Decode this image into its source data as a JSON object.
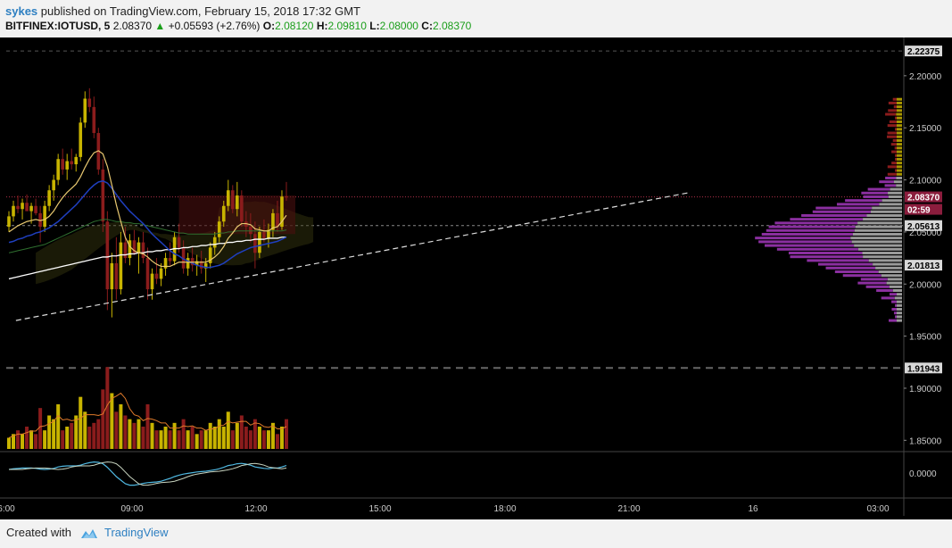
{
  "header": {
    "author": "sykes",
    "published_text": "published on TradingView.com, February 15, 2018 17:32 GMT",
    "symbol": "BITFINEX:IOTUSD, 5",
    "last": "2.08370",
    "change": "+0.05593 (+2.76%)",
    "o_label": "O:",
    "o_value": "2.08120",
    "h_label": "H:",
    "h_value": "2.09810",
    "l_label": "L:",
    "l_value": "2.08000",
    "c_label": "C:",
    "c_value": "2.08370"
  },
  "footer": {
    "created_with": "Created with",
    "brand": "TradingView"
  },
  "colors": {
    "background": "#000000",
    "bull": "#c8b400",
    "bear": "#8b1c1c",
    "ema_fast": "#e8c870",
    "ema_slow": "#1f3fbf",
    "sma_long": "#ffffff",
    "sma_green": "#2f6f2f",
    "profile": "#8b2fa0",
    "price_tag": "#d8d8d8",
    "last_tag": "#8b1d3d"
  },
  "chart_data": {
    "type": "candlestick",
    "y_ticks": [
      "2.20000",
      "2.15000",
      "2.10000",
      "2.05000",
      "2.00000",
      "1.95000",
      "1.90000",
      "1.85000"
    ],
    "price_tags": [
      {
        "name": "high-level-tag",
        "value": "2.22375"
      },
      {
        "name": "last-price-tag",
        "value": "2.08370"
      },
      {
        "name": "countdown-tag",
        "value": "02:59"
      },
      {
        "name": "level-tag-1",
        "value": "2.05613"
      },
      {
        "name": "level-tag-2",
        "value": "2.01813"
      },
      {
        "name": "low-level-tag",
        "value": "1.91943"
      }
    ],
    "oscillator_tick": "0.0000",
    "x_ticks": [
      "6:00",
      "09:00",
      "12:00",
      "15:00",
      "18:00",
      "21:00",
      "16",
      "03:00"
    ],
    "price_range": [
      1.84,
      2.235
    ],
    "candles_approx": [
      [
        2.055,
        2.07,
        2.05,
        2.065
      ],
      [
        2.065,
        2.08,
        2.06,
        2.075
      ],
      [
        2.075,
        2.085,
        2.068,
        2.072
      ],
      [
        2.072,
        2.082,
        2.062,
        2.078
      ],
      [
        2.078,
        2.086,
        2.07,
        2.07
      ],
      [
        2.07,
        2.078,
        2.058,
        2.075
      ],
      [
        2.075,
        2.082,
        2.066,
        2.068
      ],
      [
        2.068,
        2.075,
        2.04,
        2.055
      ],
      [
        2.055,
        2.08,
        2.05,
        2.075
      ],
      [
        2.075,
        2.095,
        2.07,
        2.09
      ],
      [
        2.09,
        2.105,
        2.08,
        2.1
      ],
      [
        2.1,
        2.125,
        2.095,
        2.12
      ],
      [
        2.12,
        2.13,
        2.105,
        2.11
      ],
      [
        2.11,
        2.125,
        2.1,
        2.118
      ],
      [
        2.118,
        2.13,
        2.11,
        2.115
      ],
      [
        2.115,
        2.125,
        2.108,
        2.122
      ],
      [
        2.122,
        2.16,
        2.118,
        2.155
      ],
      [
        2.155,
        2.185,
        2.15,
        2.178
      ],
      [
        2.178,
        2.188,
        2.165,
        2.17
      ],
      [
        2.17,
        2.18,
        2.14,
        2.145
      ],
      [
        2.145,
        2.15,
        2.105,
        2.11
      ],
      [
        2.11,
        2.12,
        2.05,
        2.06
      ],
      [
        2.06,
        2.07,
        1.975,
        1.995
      ],
      [
        1.995,
        2.03,
        1.968,
        2.02
      ],
      [
        2.02,
        2.045,
        1.985,
        1.995
      ],
      [
        1.995,
        2.05,
        1.99,
        2.04
      ],
      [
        2.04,
        2.055,
        2.02,
        2.025
      ],
      [
        2.025,
        2.048,
        2.018,
        2.042
      ],
      [
        2.042,
        2.052,
        2.028,
        2.03
      ],
      [
        2.03,
        2.045,
        2.01,
        2.04
      ],
      [
        2.04,
        2.05,
        2.02,
        2.025
      ],
      [
        2.025,
        2.035,
        1.985,
        1.995
      ],
      [
        1.995,
        2.015,
        1.985,
        2.01
      ],
      [
        2.01,
        2.025,
        2.0,
        2.005
      ],
      [
        2.005,
        2.02,
        1.998,
        2.015
      ],
      [
        2.015,
        2.03,
        2.008,
        2.025
      ],
      [
        2.025,
        2.04,
        2.018,
        2.022
      ],
      [
        2.022,
        2.05,
        2.018,
        2.045
      ],
      [
        2.045,
        2.058,
        2.03,
        2.035
      ],
      [
        2.035,
        2.042,
        2.01,
        2.015
      ],
      [
        2.015,
        2.03,
        2.008,
        2.025
      ],
      [
        2.025,
        2.035,
        2.012,
        2.018
      ],
      [
        2.018,
        2.028,
        2.008,
        2.022
      ],
      [
        2.022,
        2.032,
        2.01,
        2.015
      ],
      [
        2.015,
        2.025,
        2.002,
        2.02
      ],
      [
        2.02,
        2.04,
        2.015,
        2.035
      ],
      [
        2.035,
        2.05,
        2.028,
        2.045
      ],
      [
        2.045,
        2.065,
        2.04,
        2.06
      ],
      [
        2.06,
        2.08,
        2.055,
        2.075
      ],
      [
        2.075,
        2.1,
        2.07,
        2.09
      ],
      [
        2.09,
        2.095,
        2.068,
        2.072
      ],
      [
        2.072,
        2.098,
        2.065,
        2.085
      ],
      [
        2.085,
        2.09,
        2.055,
        2.06
      ],
      [
        2.06,
        2.07,
        2.045,
        2.055
      ],
      [
        2.055,
        2.068,
        2.04,
        2.048
      ],
      [
        2.048,
        2.06,
        2.015,
        2.03
      ],
      [
        2.03,
        2.055,
        2.025,
        2.05
      ],
      [
        2.05,
        2.062,
        2.04,
        2.044
      ],
      [
        2.044,
        2.058,
        2.035,
        2.052
      ],
      [
        2.052,
        2.072,
        2.045,
        2.068
      ],
      [
        2.068,
        2.08,
        2.05,
        2.055
      ],
      [
        2.055,
        2.09,
        2.052,
        2.084
      ],
      [
        2.084,
        2.098,
        2.08,
        2.0837
      ]
    ],
    "volume_approx": [
      3,
      4,
      5,
      4,
      6,
      5,
      4,
      11,
      5,
      9,
      8,
      12,
      5,
      6,
      7,
      9,
      14,
      10,
      6,
      7,
      8,
      16,
      22,
      15,
      10,
      12,
      9,
      8,
      7,
      8,
      6,
      12,
      7,
      5,
      5,
      6,
      5,
      7,
      5,
      8,
      5,
      6,
      4,
      5,
      5,
      7,
      6,
      8,
      6,
      10,
      5,
      7,
      9,
      6,
      5,
      8,
      6,
      5,
      5,
      7,
      4,
      6,
      8
    ],
    "volume_range": [
      0,
      24
    ],
    "ema_fast": [
      2.05,
      2.053,
      2.056,
      2.058,
      2.06,
      2.061,
      2.062,
      2.061,
      2.062,
      2.065,
      2.07,
      2.077,
      2.083,
      2.088,
      2.092,
      2.096,
      2.103,
      2.112,
      2.12,
      2.126,
      2.128,
      2.125,
      2.113,
      2.095,
      2.076,
      2.06,
      2.045,
      2.036,
      2.032,
      2.03,
      2.029,
      2.026,
      2.022,
      2.019,
      2.017,
      2.017,
      2.017,
      2.019,
      2.021,
      2.021,
      2.021,
      2.021,
      2.021,
      2.021,
      2.021,
      2.023,
      2.026,
      2.03,
      2.036,
      2.044,
      2.049,
      2.055,
      2.058,
      2.058,
      2.057,
      2.053,
      2.052,
      2.051,
      2.051,
      2.054,
      2.055,
      2.06,
      2.066
    ],
    "ema_slow": [
      2.04,
      2.041,
      2.043,
      2.044,
      2.046,
      2.047,
      2.049,
      2.05,
      2.052,
      2.054,
      2.057,
      2.06,
      2.064,
      2.068,
      2.072,
      2.076,
      2.081,
      2.086,
      2.091,
      2.095,
      2.098,
      2.099,
      2.097,
      2.092,
      2.086,
      2.08,
      2.075,
      2.07,
      2.066,
      2.062,
      2.058,
      2.053,
      2.048,
      2.044,
      2.04,
      2.036,
      2.032,
      2.029,
      2.027,
      2.024,
      2.022,
      2.02,
      2.018,
      2.017,
      2.016,
      2.016,
      2.017,
      2.018,
      2.02,
      2.023,
      2.026,
      2.029,
      2.031,
      2.033,
      2.035,
      2.036,
      2.037,
      2.038,
      2.039,
      2.04,
      2.041,
      2.043,
      2.045
    ],
    "sma_long": [
      2.005,
      2.006,
      2.007,
      2.008,
      2.009,
      2.01,
      2.011,
      2.012,
      2.013,
      2.014,
      2.015,
      2.016,
      2.017,
      2.018,
      2.019,
      2.02,
      2.021,
      2.022,
      2.023,
      2.024,
      2.025,
      2.026,
      2.026,
      2.027,
      2.027,
      2.028,
      2.028,
      2.029,
      2.029,
      2.03,
      2.03,
      2.031,
      2.031,
      2.032,
      2.032,
      2.033,
      2.033,
      2.034,
      2.034,
      2.035,
      2.035,
      2.036,
      2.036,
      2.037,
      2.037,
      2.038,
      2.038,
      2.039,
      2.039,
      2.04,
      2.04,
      2.041,
      2.041,
      2.042,
      2.042,
      2.043,
      2.043,
      2.043,
      2.044,
      2.044,
      2.044,
      2.045,
      2.045
    ],
    "sma_green": [
      2.03,
      2.031,
      2.032,
      2.033,
      2.034,
      2.035,
      2.036,
      2.037,
      2.038,
      2.04,
      2.042,
      2.044,
      2.046,
      2.048,
      2.05,
      2.052,
      2.054,
      2.056,
      2.058,
      2.06,
      2.061,
      2.062,
      2.062,
      2.061,
      2.06,
      2.06,
      2.059,
      2.059,
      2.058,
      2.058,
      2.057,
      2.056,
      2.055,
      2.054,
      2.053,
      2.052,
      2.051,
      2.05,
      2.049,
      2.049,
      2.048,
      2.048,
      2.048,
      2.048,
      2.048,
      2.048,
      2.048,
      2.049,
      2.049,
      2.05,
      2.05,
      2.051,
      2.051,
      2.051,
      2.051,
      2.051,
      2.051,
      2.051,
      2.051,
      2.051,
      2.051,
      2.051,
      2.052
    ],
    "trendline": [
      [
        0.17,
        1.965
      ],
      [
        2.76,
        2.088
      ]
    ]
  }
}
